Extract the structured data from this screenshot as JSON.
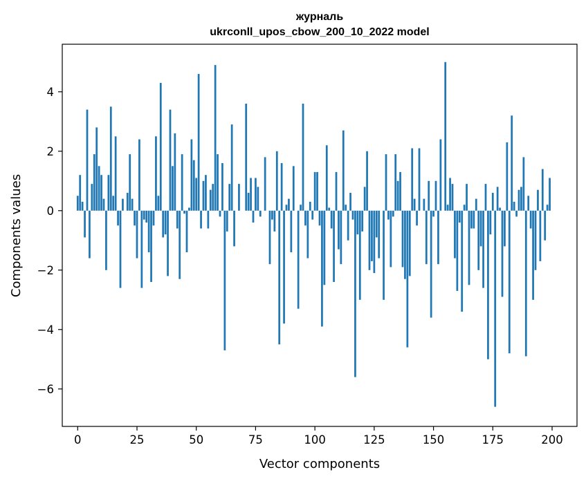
{
  "chart_data": {
    "type": "bar",
    "title_line1": "журналь",
    "title_line2": "ukrconll_upos_cbow_200_10_2022 model",
    "xlabel": "Vector components",
    "ylabel": "Components values",
    "xlim": [
      -6.5,
      210.5
    ],
    "ylim": [
      -7.26,
      5.6
    ],
    "xticks": [
      0,
      25,
      50,
      75,
      100,
      125,
      150,
      175,
      200
    ],
    "xtick_labels": [
      "0",
      "25",
      "50",
      "75",
      "100",
      "125",
      "150",
      "175",
      "200"
    ],
    "yticks": [
      -6,
      -4,
      -2,
      0,
      2,
      4
    ],
    "ytick_labels": [
      "−6",
      "−4",
      "−2",
      "0",
      "2",
      "4"
    ],
    "bar_color": "#1f77b4",
    "values": [
      0.5,
      1.2,
      0.3,
      -0.9,
      3.4,
      -1.6,
      0.9,
      1.9,
      2.8,
      1.5,
      1.2,
      0.4,
      -2.0,
      1.2,
      3.5,
      0.5,
      2.5,
      -0.5,
      -2.6,
      0.4,
      0.0,
      0.6,
      1.9,
      0.4,
      -0.5,
      -1.6,
      2.4,
      -2.6,
      -0.3,
      -0.4,
      -1.4,
      -2.4,
      -0.5,
      2.5,
      0.5,
      4.3,
      -0.9,
      -0.8,
      -2.2,
      3.4,
      1.5,
      2.6,
      -0.6,
      -2.3,
      1.9,
      -0.1,
      -1.4,
      0.1,
      2.4,
      1.7,
      1.1,
      4.6,
      -0.6,
      1.0,
      1.2,
      -0.6,
      0.7,
      0.9,
      4.9,
      1.9,
      -0.2,
      1.6,
      -4.7,
      -0.7,
      0.9,
      2.9,
      -1.2,
      0.0,
      0.9,
      0.0,
      0.0,
      3.6,
      0.6,
      1.1,
      -0.4,
      1.1,
      0.8,
      -0.2,
      0.0,
      1.8,
      0.0,
      -1.8,
      -0.3,
      -0.7,
      2.0,
      -4.5,
      1.6,
      -3.8,
      0.2,
      0.4,
      -1.4,
      1.5,
      0.0,
      -3.3,
      0.2,
      3.6,
      -0.5,
      -1.6,
      0.3,
      -0.3,
      1.3,
      1.3,
      -0.5,
      -3.9,
      -2.5,
      2.2,
      0.1,
      -0.6,
      -2.4,
      1.3,
      -1.3,
      -1.8,
      2.7,
      0.2,
      -1.0,
      0.6,
      -0.3,
      -5.6,
      -0.8,
      -3.0,
      -0.7,
      0.8,
      2.0,
      -2.0,
      -1.7,
      -2.1,
      -0.9,
      -1.6,
      0.0,
      -3.0,
      1.9,
      -0.3,
      -1.9,
      -0.2,
      1.9,
      1.0,
      1.3,
      -1.9,
      -2.3,
      -4.6,
      -2.2,
      2.1,
      0.4,
      -0.5,
      2.1,
      0.0,
      0.4,
      -1.8,
      1.0,
      -3.6,
      -0.2,
      1.0,
      -1.8,
      2.4,
      0.0,
      5.0,
      0.2,
      1.1,
      0.9,
      -1.6,
      -2.7,
      -0.4,
      -3.4,
      0.2,
      0.9,
      -2.5,
      -0.6,
      -0.6,
      0.4,
      -2.0,
      -1.2,
      -2.6,
      0.9,
      -5.0,
      -0.8,
      0.6,
      -6.6,
      0.8,
      0.1,
      -2.9,
      -1.2,
      2.3,
      -4.8,
      3.2,
      0.3,
      -0.2,
      0.7,
      0.8,
      1.8,
      -4.9,
      0.5,
      -0.6,
      -3.0,
      -2.0,
      0.7,
      -1.7,
      1.4,
      -1.0,
      0.2,
      1.1
    ]
  }
}
